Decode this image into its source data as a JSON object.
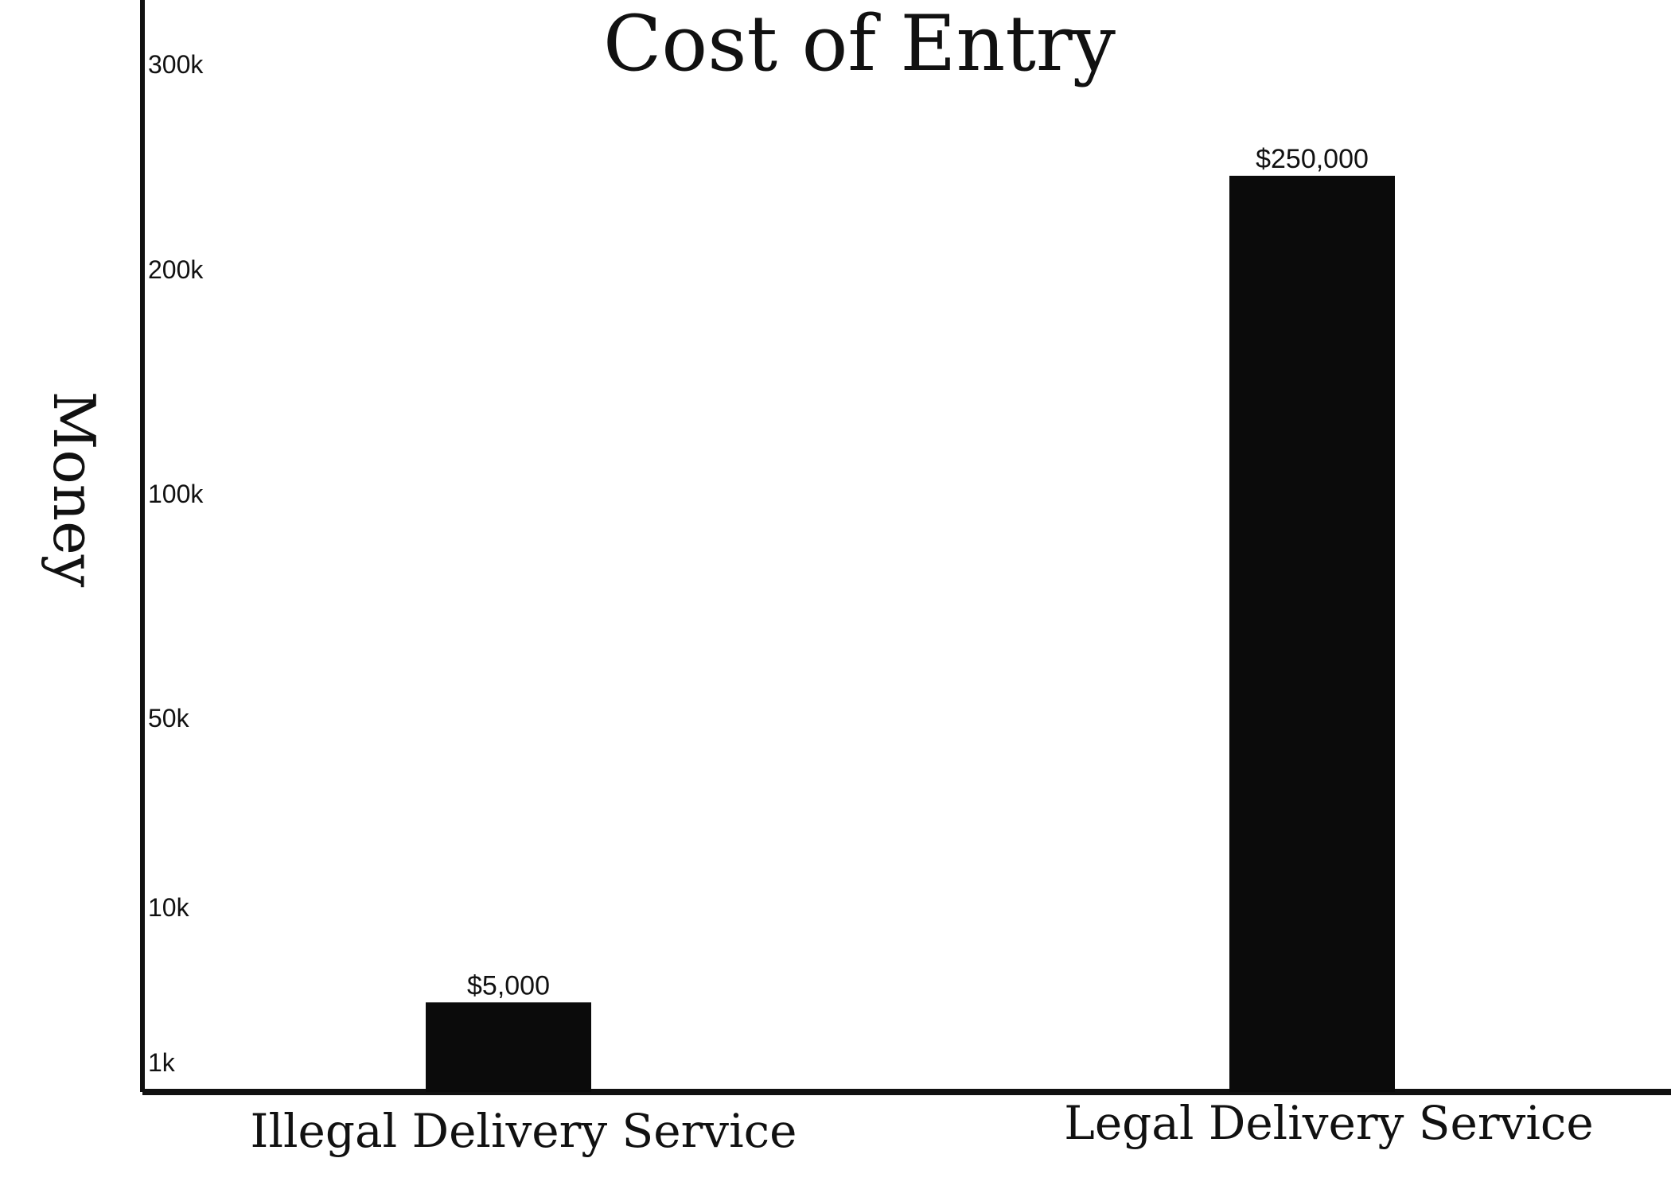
{
  "chart_data": {
    "type": "bar",
    "title": "Cost of Entry",
    "xlabel": "",
    "ylabel": "Money",
    "categories": [
      "Illegal Delivery Service",
      "Legal Delivery Service"
    ],
    "values": [
      5000,
      250000
    ],
    "data_labels": [
      "$5,000",
      "$250,000"
    ],
    "y_ticks": [
      {
        "value": 1000,
        "label": "1k"
      },
      {
        "value": 10000,
        "label": "10k"
      },
      {
        "value": 50000,
        "label": "50k"
      },
      {
        "value": 100000,
        "label": "100k"
      },
      {
        "value": 200000,
        "label": "200k"
      },
      {
        "value": 300000,
        "label": "300k"
      }
    ],
    "ylim": [
      0,
      300000
    ],
    "y_scale": "irregular",
    "grid": false,
    "legend": "none",
    "bar_color": "#0b0b0b",
    "axis_color": "#111111"
  }
}
